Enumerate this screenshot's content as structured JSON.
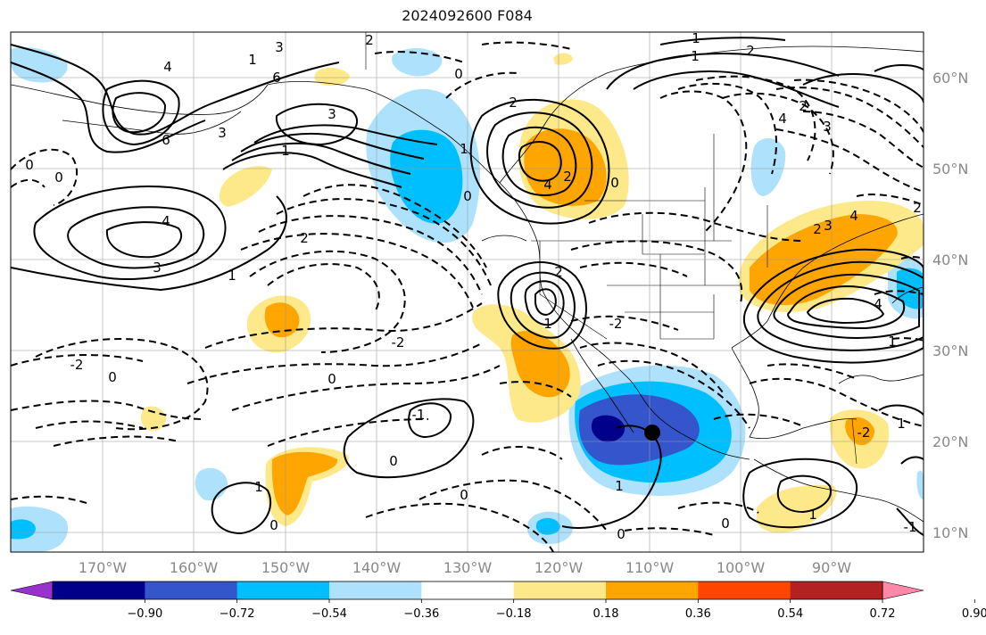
{
  "title": "2024092600 F084",
  "map": {
    "lon_labels": [
      "170°W",
      "160°W",
      "150°W",
      "140°W",
      "130°W",
      "120°W",
      "110°W",
      "100°W",
      "90°W"
    ],
    "lat_labels": [
      "60°N",
      "50°N",
      "40°N",
      "30°N",
      "20°N",
      "10°N"
    ],
    "contour_labels": [
      "3",
      "2",
      "1",
      "4",
      "6",
      "3",
      "1",
      "0",
      "0",
      "4",
      "3",
      "2",
      "1",
      "0",
      "2",
      "1",
      "0",
      "-2",
      "-2",
      "0",
      "0",
      "-1",
      "0",
      "1",
      "0",
      "1",
      "2",
      "1",
      "2",
      "4",
      "3",
      "2",
      "1",
      "0",
      "4",
      "2",
      "-2",
      "0",
      "1",
      "0",
      "1",
      "-2",
      "1",
      "-1",
      "2",
      "3",
      "4",
      "2",
      "1",
      "4",
      "6",
      "3",
      "0"
    ],
    "marker": "black-dot"
  },
  "colorbar": {
    "colors": [
      "#9932cc",
      "#00008b",
      "#3455cc",
      "#00bfff",
      "#aee2fc",
      "#ffffff",
      "#fde98a",
      "#ffa500",
      "#ff4500",
      "#b22222",
      "#ff88a8"
    ],
    "tick_labels": [
      "−0.90",
      "−0.72",
      "−0.54",
      "−0.36",
      "−0.18",
      "0.18",
      "0.36",
      "0.54",
      "0.72",
      "0.90"
    ]
  }
}
